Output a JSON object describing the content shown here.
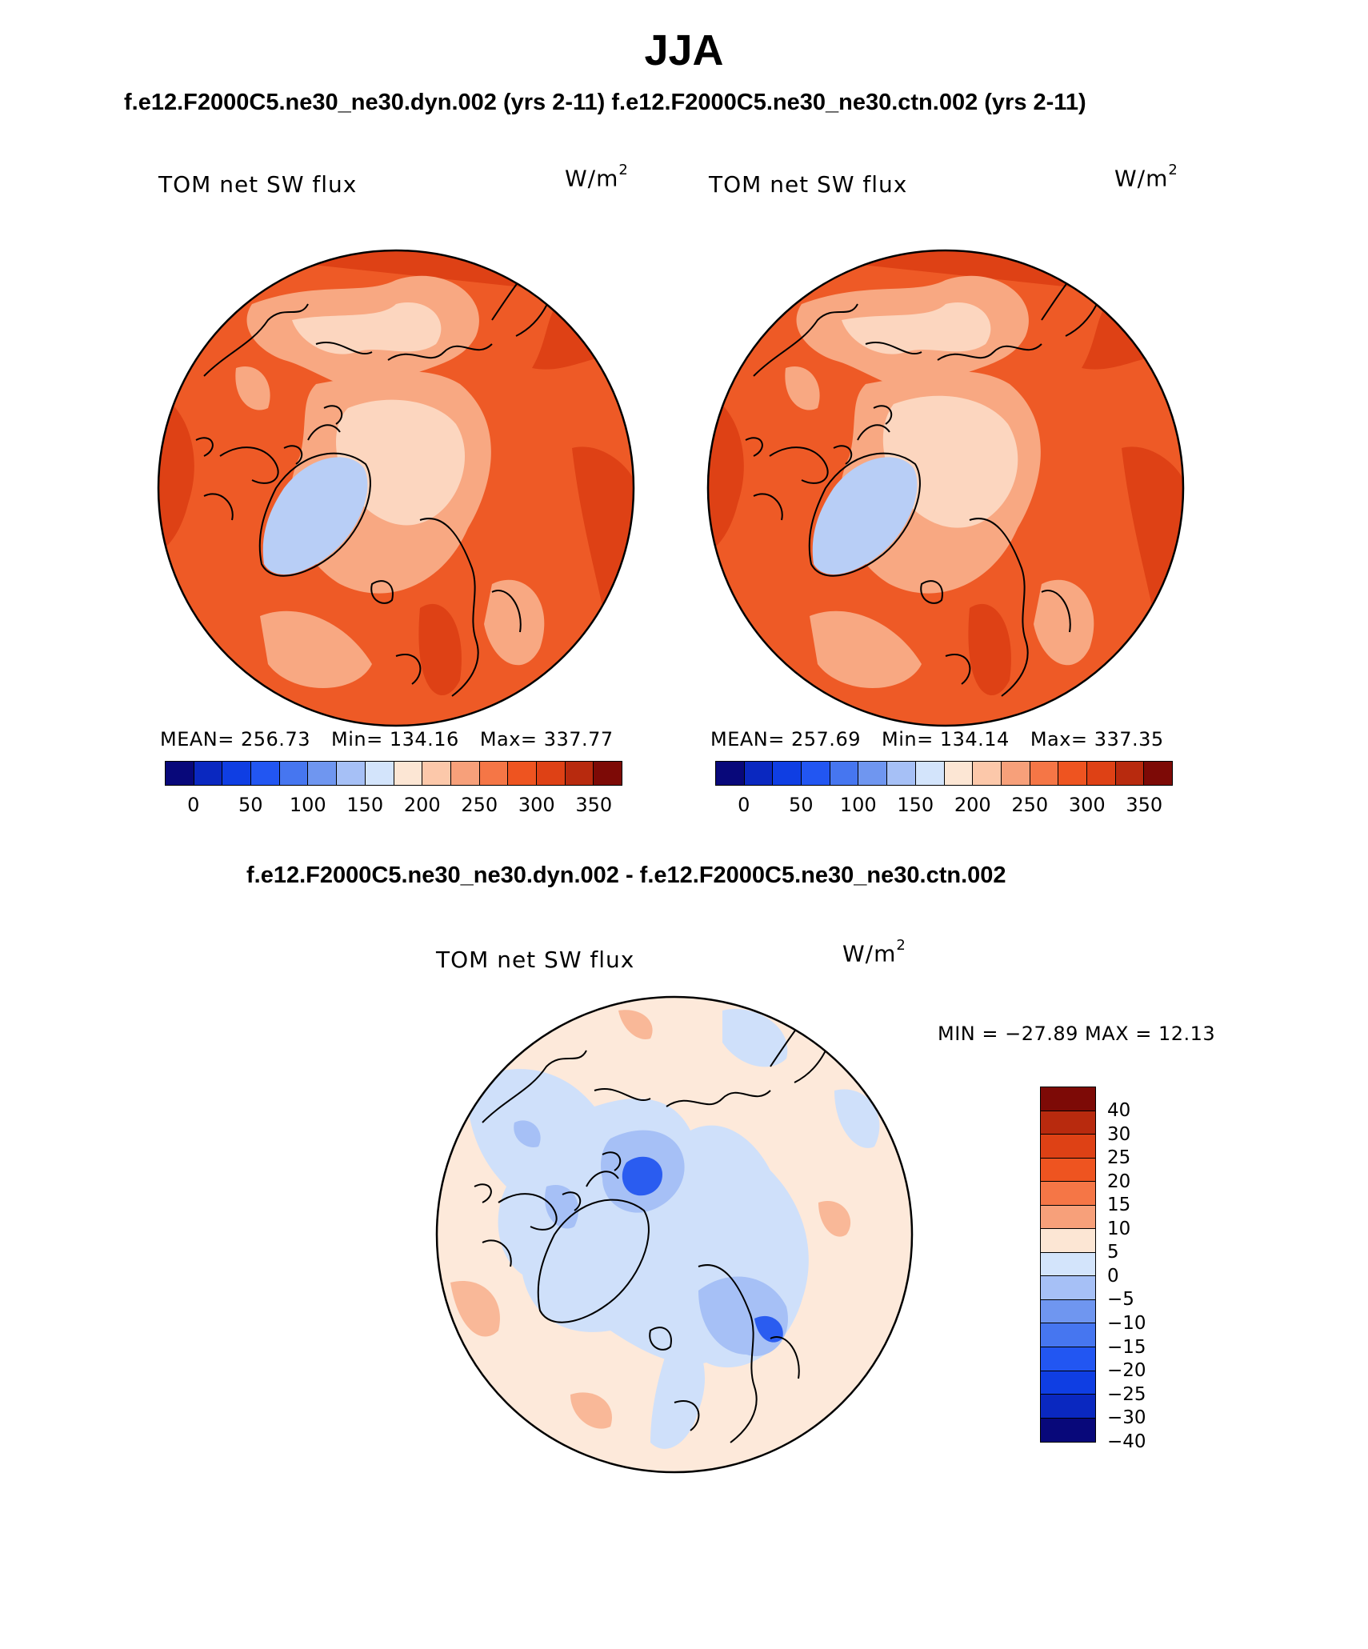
{
  "figure": {
    "title": "JJA",
    "subtitle_top": "f.e12.F2000C5.ne30_ne30.dyn.002 (yrs 2-11)  f.e12.F2000C5.ne30_ne30.ctn.002 (yrs 2-11)",
    "subtitle_diff": "f.e12.F2000C5.ne30_ne30.dyn.002 - f.e12.F2000C5.ne30_ne30.ctn.002"
  },
  "panels": [
    {
      "id": "dyn",
      "label": "TOM net SW flux",
      "unit_base": "W/m",
      "unit_exp": "2",
      "mean_label": "MEAN=",
      "mean": "256.73",
      "min_label": "Min=",
      "min": "134.16",
      "max_label": "Max=",
      "max": "337.77"
    },
    {
      "id": "ctn",
      "label": "TOM net SW flux",
      "unit_base": "W/m",
      "unit_exp": "2",
      "mean_label": "MEAN=",
      "mean": "257.69",
      "min_label": "Min=",
      "min": "134.14",
      "max_label": "Max=",
      "max": "337.35"
    }
  ],
  "diff_panel": {
    "label": "TOM net SW flux",
    "unit_base": "W/m",
    "unit_exp": "2",
    "minmax_text": "MIN = −27.89 MAX =   12.13"
  },
  "colorbar_abs": {
    "colors": [
      "#08087a",
      "#0a28c0",
      "#0f3ee3",
      "#2256f2",
      "#4676f0",
      "#6f96f0",
      "#a6c0f6",
      "#d3e4fb",
      "#fce6d4",
      "#fcc8aa",
      "#f7a07a",
      "#f57646",
      "#ee5420",
      "#de4115",
      "#b82a0e",
      "#7d0a06"
    ],
    "ticks": [
      "0",
      "50",
      "100",
      "150",
      "200",
      "250",
      "300",
      "350"
    ]
  },
  "colorbar_diff": {
    "colors": [
      "#7d0a06",
      "#b82a0e",
      "#de4115",
      "#ee5420",
      "#f57646",
      "#f7a07a",
      "#fce6d4",
      "#d3e4fb",
      "#a6c0f6",
      "#6f96f0",
      "#4676f0",
      "#2256f2",
      "#0f3ee3",
      "#0a28c0",
      "#08087a"
    ],
    "ticks": [
      "40",
      "30",
      "25",
      "20",
      "15",
      "10",
      "5",
      "0",
      "−5",
      "−10",
      "−15",
      "−20",
      "−25",
      "−30",
      "−40"
    ]
  },
  "map_colors": {
    "abs_base": "#ee5a26",
    "abs_dark": "#de4115",
    "abs_light": "#f8a882",
    "abs_pale": "#fcd6bf",
    "abs_blue": "#b8cef6",
    "diff_base": "#fde9da",
    "diff_blue": "#cfe0fa",
    "diff_mid": "#a6c0f6",
    "diff_strong": "#2a5cf0",
    "diff_red": "#f9b898"
  }
}
